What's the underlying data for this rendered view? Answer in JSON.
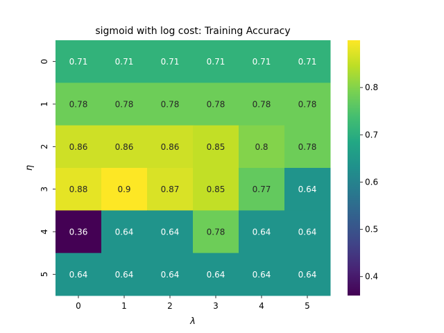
{
  "chart_data": {
    "type": "heatmap",
    "title": "sigmoid with log cost: Training Accuracy",
    "xlabel": "λ",
    "ylabel": "η",
    "x_categories": [
      "0",
      "1",
      "2",
      "3",
      "4",
      "5"
    ],
    "y_categories": [
      "0",
      "1",
      "2",
      "3",
      "4",
      "5"
    ],
    "values": [
      [
        0.71,
        0.71,
        0.71,
        0.71,
        0.71,
        0.71
      ],
      [
        0.78,
        0.78,
        0.78,
        0.78,
        0.78,
        0.78
      ],
      [
        0.86,
        0.86,
        0.86,
        0.85,
        0.8,
        0.78
      ],
      [
        0.88,
        0.9,
        0.87,
        0.85,
        0.77,
        0.64
      ],
      [
        0.36,
        0.64,
        0.64,
        0.78,
        0.64,
        0.64
      ],
      [
        0.64,
        0.64,
        0.64,
        0.64,
        0.64,
        0.64
      ]
    ],
    "colormap": "viridis",
    "vmin": 0.36,
    "vmax": 0.9,
    "colorbar_ticks": [
      "0.4",
      "0.5",
      "0.6",
      "0.7",
      "0.8"
    ],
    "annotations": true
  }
}
